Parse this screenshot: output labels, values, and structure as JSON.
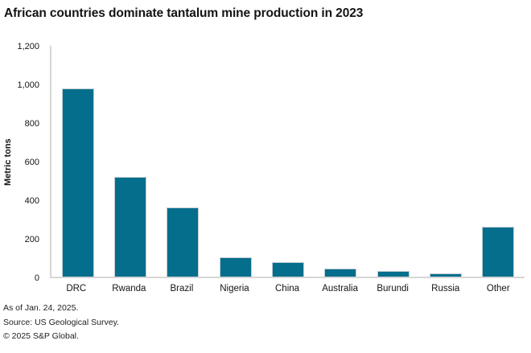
{
  "page": {
    "title": "African countries dominate tantalum mine production in 2023"
  },
  "chart_data": {
    "type": "bar",
    "title": "African countries dominate tantalum mine production in 2023",
    "categories": [
      "DRC",
      "Rwanda",
      "Brazil",
      "Nigeria",
      "China",
      "Australia",
      "Burundi",
      "Russia",
      "Other"
    ],
    "values": [
      980,
      520,
      360,
      100,
      75,
      40,
      30,
      18,
      260
    ],
    "xlabel": "",
    "ylabel": "Metric tons",
    "ylim": [
      0,
      1200
    ],
    "ytick_values": [
      0,
      200,
      400,
      600,
      800,
      1000,
      1200
    ],
    "ytick_labels": [
      "0",
      "200",
      "400",
      "600",
      "800",
      "1,000",
      "1,200"
    ],
    "grid": "off",
    "legend": "none",
    "bar_color": "#046e8c"
  },
  "colors": {
    "bar": "#046e8c",
    "bar_outline": "#c2cdd3",
    "axis_line": "#d6d6d6",
    "title_text": "#141414",
    "tick_text": "#141414",
    "footer_text": "#212121",
    "background": "#ffffff"
  },
  "footer": {
    "as_of": "As of Jan. 24, 2025.",
    "source": "Source: US Geological Survey.",
    "copyright": "© 2025 S&P Global."
  }
}
